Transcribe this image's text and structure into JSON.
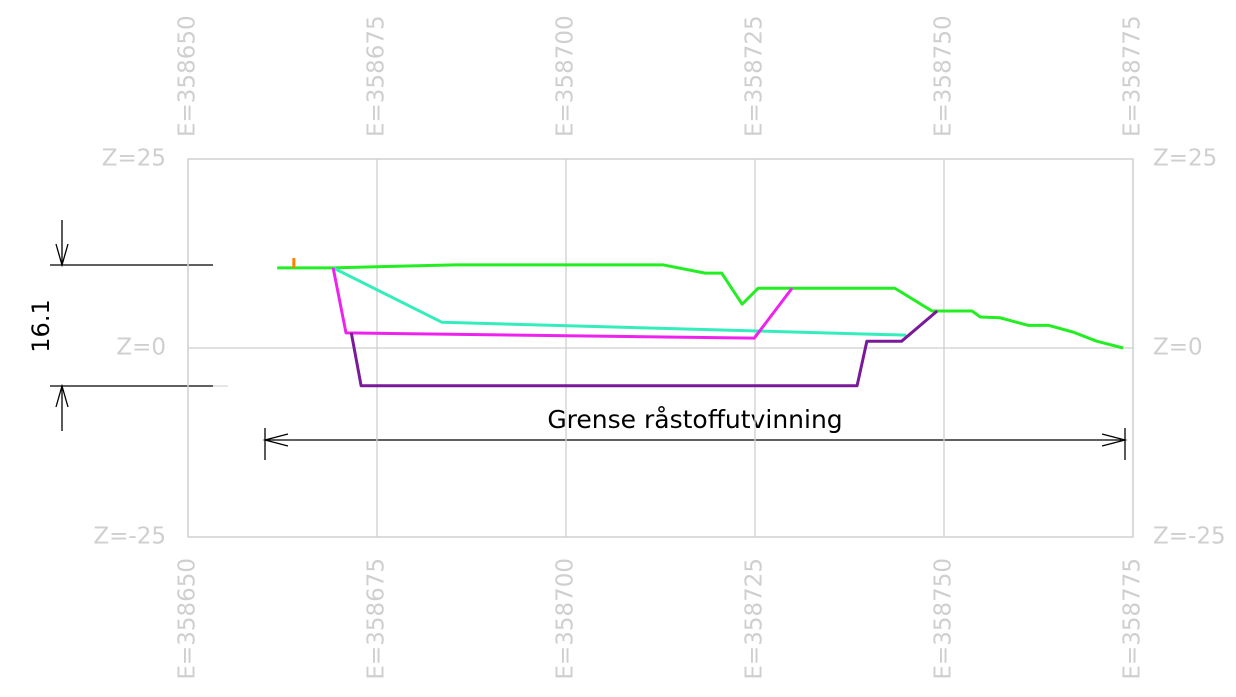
{
  "chart_data": {
    "type": "line",
    "xlim": [
      358650,
      358775
    ],
    "xticks": [
      {
        "value": 358650,
        "label": "E=358650"
      },
      {
        "value": 358675,
        "label": "E=358675"
      },
      {
        "value": 358700,
        "label": "E=358700"
      },
      {
        "value": 358725,
        "label": "E=358725"
      },
      {
        "value": 358750,
        "label": "E=358750"
      },
      {
        "value": 358775,
        "label": "E=358775"
      }
    ],
    "ylim": [
      -25,
      25
    ],
    "yticks": [
      {
        "value": 25,
        "label": "Z=25"
      },
      {
        "value": 0,
        "label": "Z=0"
      },
      {
        "value": -25,
        "label": "Z=-25"
      }
    ],
    "grid": true,
    "series": [
      {
        "color": "#22ee22",
        "x": [
          358661.8,
          358669.2,
          358685.3,
          358712.8,
          358718.4,
          358720.6,
          358723.3,
          358725.4,
          358743.5,
          358748.4,
          358753.7,
          358754.8,
          358757.4,
          358761.1,
          358763.8,
          358767.1,
          358770.2,
          358773.7
        ],
        "values": [
          10.6,
          10.6,
          11.0,
          11.0,
          9.9,
          9.9,
          5.8,
          7.9,
          7.9,
          4.9,
          4.9,
          4.1,
          4.0,
          3.0,
          3.0,
          2.1,
          0.9,
          0.0
        ]
      },
      {
        "color": "#33eebb",
        "x": [
          358669.2,
          358683.6,
          358745.0
        ],
        "values": [
          10.6,
          3.4,
          1.7
        ]
      },
      {
        "color": "#ee22ee",
        "x": [
          358669.2,
          358670.9,
          358724.9,
          358729.9
        ],
        "values": [
          10.6,
          2.0,
          1.3,
          7.9
        ]
      },
      {
        "color": "#7a1a9a",
        "x": [
          358671.6,
          358672.9,
          358738.5,
          358739.8,
          358744.4,
          358749.1
        ],
        "values": [
          2.0,
          -5.0,
          -5.0,
          0.9,
          0.9,
          4.9
        ]
      },
      {
        "color": "#ff7f00",
        "x": [
          358664.0,
          358664.0
        ],
        "values": [
          10.6,
          11.9
        ]
      }
    ],
    "annotations": [
      "16.1",
      "Grense råstoffutvinning"
    ]
  }
}
